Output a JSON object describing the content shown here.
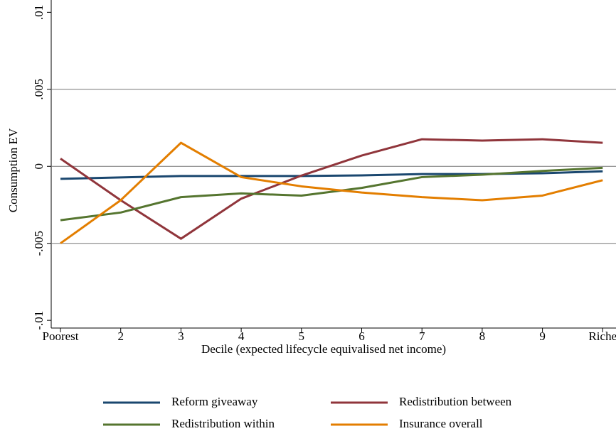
{
  "chart_data": {
    "type": "line",
    "xlabel": "Decile (expected lifecycle equivalised net income)",
    "ylabel": "Consumption EV",
    "categories": [
      "Poorest",
      "2",
      "3",
      "4",
      "5",
      "6",
      "7",
      "8",
      "9",
      "Riche"
    ],
    "ylim": [
      -0.0105,
      0.0108
    ],
    "yticks": [
      {
        "value": -0.01,
        "label": "-.01"
      },
      {
        "value": -0.005,
        "label": "-.005"
      },
      0,
      {
        "value": 0.005,
        "label": ".005"
      },
      {
        "value": 0.01,
        "label": ".01"
      }
    ],
    "grid": true,
    "series": [
      {
        "name": "Reform giveaway",
        "color": "#1a476f",
        "values": [
          -0.00081,
          -0.00072,
          -0.00063,
          -0.00063,
          -0.00063,
          -0.00059,
          -0.0005,
          -0.0005,
          -0.00045,
          -0.00032
        ]
      },
      {
        "name": "Redistribution between",
        "color": "#90353b",
        "values": [
          0.0005,
          -0.0022,
          -0.0047,
          -0.0021,
          -0.0006,
          0.0007,
          0.00176,
          0.00167,
          0.00176,
          0.00153
        ]
      },
      {
        "name": "Redistribution within",
        "color": "#55752f",
        "values": [
          -0.0035,
          -0.003,
          -0.002,
          -0.00176,
          -0.0019,
          -0.0014,
          -0.0007,
          -0.00054,
          -0.0003,
          -0.0001
        ]
      },
      {
        "name": "Insurance overall",
        "color": "#e37e00",
        "values": [
          -0.005,
          -0.0022,
          0.00153,
          -0.0007,
          -0.0013,
          -0.0017,
          -0.002,
          -0.0022,
          -0.0019,
          -0.0009
        ]
      }
    ]
  }
}
